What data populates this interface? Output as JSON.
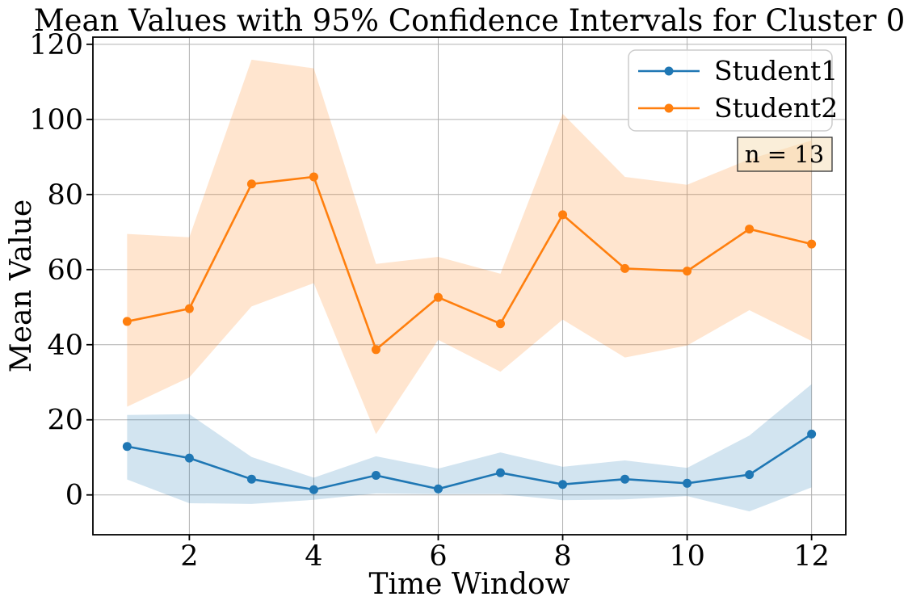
{
  "chart_data": {
    "type": "line",
    "title": "Mean Values with 95% Confidence Intervals for Cluster 0",
    "xlabel": "Time Window",
    "ylabel": "Mean Value",
    "annotation": "n = 13",
    "grid": true,
    "legend_position": "upper right",
    "x": [
      1,
      2,
      3,
      4,
      5,
      6,
      7,
      8,
      9,
      10,
      11,
      12
    ],
    "xlim": [
      0.45,
      12.55
    ],
    "ylim": [
      -10.6,
      121.9
    ],
    "xticks": [
      2,
      4,
      6,
      8,
      10,
      12
    ],
    "yticks": [
      0,
      20,
      40,
      60,
      80,
      100,
      120
    ],
    "band_opacity": 0.2,
    "grid_color": "#b0b0b0",
    "spine_color": "#000000",
    "legend_border_color": "#cccccc",
    "annotation_bg_color": "#f5deb3",
    "series": [
      {
        "name": "Student1",
        "color": "#1f77b4",
        "values": [
          12.9,
          9.8,
          4.2,
          1.4,
          5.2,
          1.6,
          5.9,
          2.8,
          4.2,
          3.1,
          5.4,
          16.2
        ],
        "ci_upper": [
          21.3,
          21.5,
          10.1,
          4.6,
          10.3,
          7.0,
          11.3,
          7.5,
          9.2,
          7.2,
          15.8,
          29.5
        ],
        "ci_lower": [
          4.1,
          -2.2,
          -2.4,
          -1.3,
          0.4,
          0.2,
          0.2,
          -1.4,
          -1.2,
          -0.3,
          -4.4,
          2.0
        ]
      },
      {
        "name": "Student2",
        "color": "#ff7f0e",
        "values": [
          46.2,
          49.6,
          82.8,
          84.7,
          38.7,
          52.6,
          45.6,
          74.6,
          60.3,
          59.6,
          70.8,
          66.8
        ],
        "ci_upper": [
          69.5,
          68.6,
          115.9,
          113.6,
          61.5,
          63.4,
          58.9,
          101.5,
          84.7,
          82.6,
          89.4,
          94.4
        ],
        "ci_lower": [
          23.5,
          31.3,
          50.2,
          56.4,
          16.2,
          41.3,
          32.8,
          46.7,
          36.6,
          39.8,
          49.2,
          41.0
        ]
      }
    ]
  }
}
